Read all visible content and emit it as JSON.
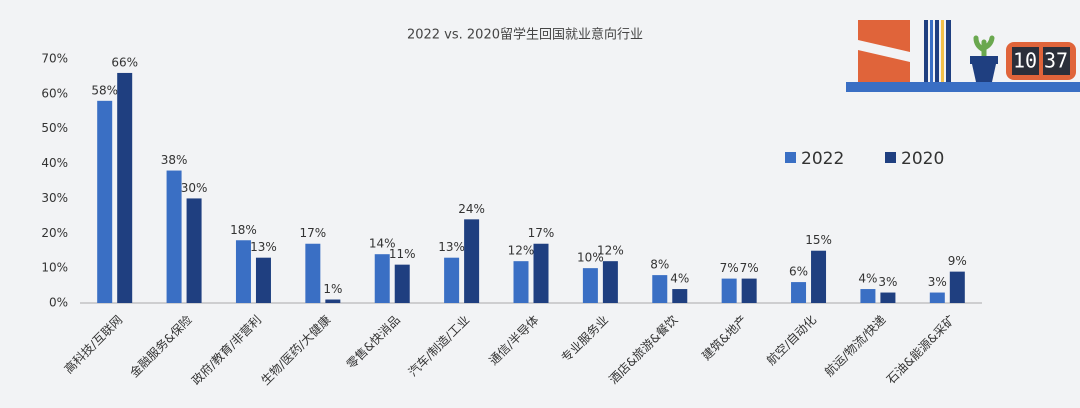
{
  "chart_data": {
    "type": "bar",
    "title": "2022 vs. 2020留学生回国就业意向行业",
    "categories": [
      "高科技/互联网",
      "金融服务&保险",
      "政府/教育/非营利",
      "生物/医药/大健康",
      "零售&快消品",
      "汽车/制造/工业",
      "通信/半导体",
      "专业服务业",
      "酒店&旅游&餐饮",
      "建筑&地产",
      "航空/自动化",
      "航运/物流/快递",
      "石油&能源&采矿"
    ],
    "series": [
      {
        "name": "2022",
        "color": "#3a6fc4",
        "values": [
          58,
          38,
          18,
          17,
          14,
          13,
          12,
          10,
          8,
          7,
          6,
          4,
          3
        ],
        "value_labels": [
          "58%",
          "38%",
          "18%",
          "17%",
          "14%",
          "13%",
          "12%",
          "10%",
          "8%",
          "7%",
          "6%",
          "4%",
          "3%"
        ]
      },
      {
        "name": "2020",
        "color": "#1f3f80",
        "values": [
          66,
          30,
          13,
          1,
          11,
          24,
          17,
          12,
          4,
          7,
          15,
          3,
          9
        ],
        "value_labels": [
          "66%",
          "30%",
          "13%",
          "1%",
          "11%",
          "24%",
          "17%",
          "12%",
          "4%",
          "7%",
          "15%",
          "3%",
          "9%"
        ]
      }
    ],
    "ylim": [
      0,
      70
    ],
    "yticks": [
      {
        "value": 0,
        "label": "0%"
      },
      {
        "value": 10,
        "label": "10%"
      },
      {
        "value": 20,
        "label": "20%"
      },
      {
        "value": 30,
        "label": "30%"
      },
      {
        "value": 40,
        "label": "40%"
      },
      {
        "value": 50,
        "label": "50%"
      },
      {
        "value": 60,
        "label": "60%"
      },
      {
        "value": 70,
        "label": "70%"
      }
    ],
    "grid": false,
    "legend": "right"
  },
  "clock": [
    "10",
    "37"
  ]
}
